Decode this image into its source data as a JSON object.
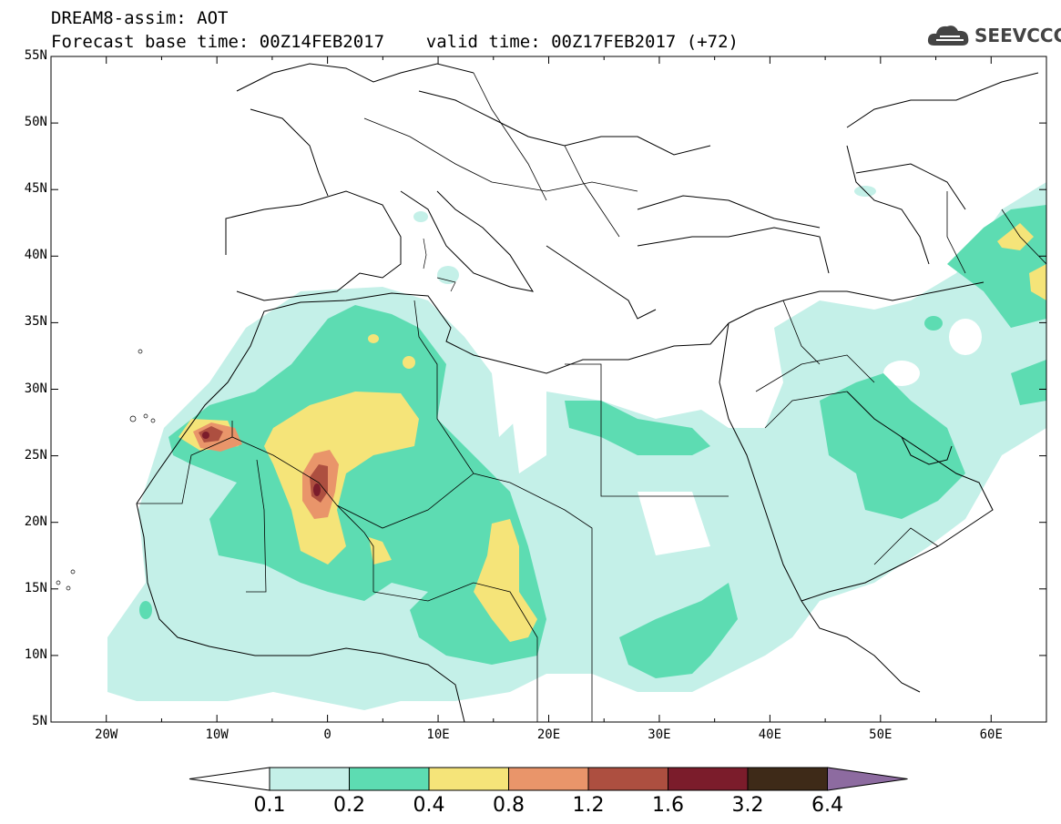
{
  "title": {
    "line1": "DREAM8-assim: AOT",
    "line2": "Forecast base time: 00Z14FEB2017    valid time: 00Z17FEB2017 (+72)"
  },
  "logo": {
    "text": "SEEVCCC",
    "icon": "cloud-gear-icon"
  },
  "map": {
    "lon_range": [
      -25,
      65
    ],
    "lat_range": [
      5,
      55
    ],
    "lat_labels": [
      "5N",
      "10N",
      "15N",
      "20N",
      "25N",
      "30N",
      "35N",
      "40N",
      "45N",
      "50N",
      "55N"
    ],
    "lon_labels": [
      "20W",
      "10W",
      "0",
      "10E",
      "20E",
      "30E",
      "40E",
      "50E",
      "60E"
    ]
  },
  "colorbar": {
    "labels": [
      "0.1",
      "0.2",
      "0.4",
      "0.8",
      "1.2",
      "1.6",
      "3.2",
      "6.4"
    ],
    "colors": [
      "#ffffff",
      "#c4f0e8",
      "#5ddcb2",
      "#f5e479",
      "#e9956a",
      "#ad4f40",
      "#7b1c2b",
      "#3e2a18",
      "#8d6ba0"
    ]
  },
  "chart_data": {
    "type": "heatmap",
    "title": "DREAM8-assim: AOT",
    "xlabel": "",
    "ylabel": "",
    "xlim": [
      -25,
      65
    ],
    "ylim": [
      5,
      55
    ],
    "levels": [
      0.1,
      0.2,
      0.4,
      0.8,
      1.2,
      1.6,
      3.2,
      6.4
    ],
    "regions": [
      {
        "name": "",
        "level": 0.1,
        "lon": [
          -18,
          30
        ],
        "lat": [
          8,
          36
        ]
      },
      {
        "name": "",
        "level": 0.2,
        "lon": [
          -14,
          12
        ],
        "lat": [
          13,
          33
        ]
      },
      {
        "name": "",
        "level": 0.4,
        "lon": [
          -6,
          8
        ],
        "lat": [
          16,
          29
        ]
      },
      {
        "name": "",
        "level": 0.8,
        "lon": [
          -13,
          -9
        ],
        "lat": [
          25,
          27
        ]
      },
      {
        "name": "",
        "level": 1.2,
        "lon": [
          -2,
          1
        ],
        "lat": [
          21,
          25
        ]
      },
      {
        "name": "",
        "level": 1.6,
        "lon": [
          -1,
          0
        ],
        "lat": [
          22,
          24
        ]
      }
    ]
  }
}
